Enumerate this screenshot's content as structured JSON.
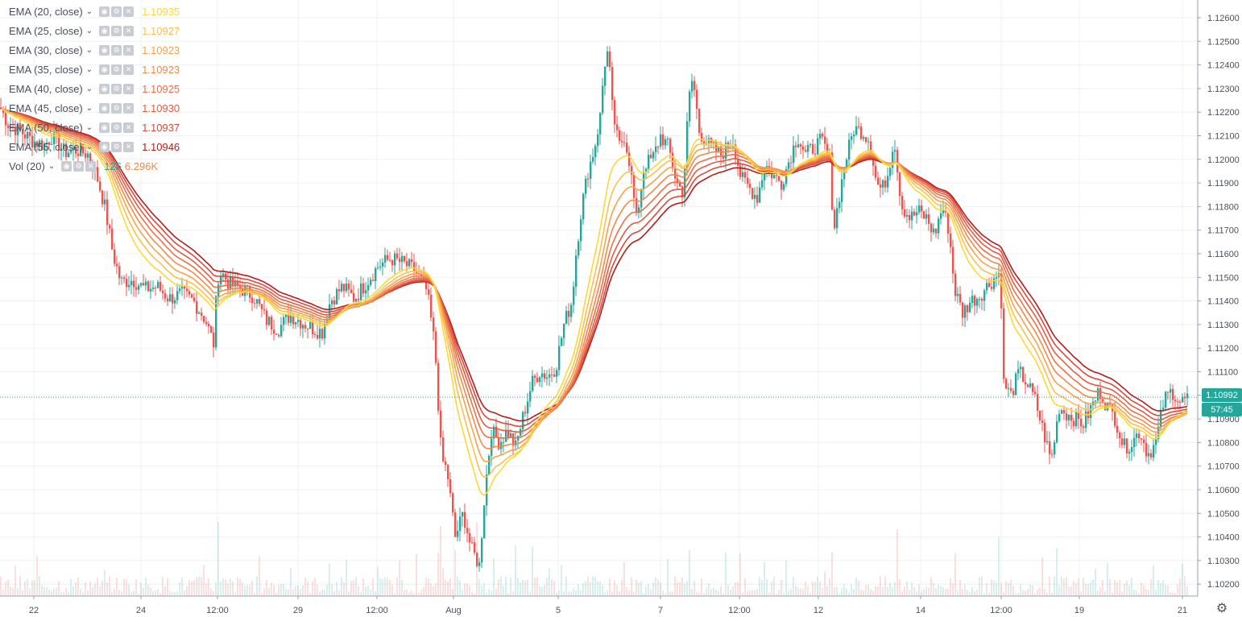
{
  "legend": [
    {
      "label": "EMA (20, close)",
      "value": "1.10935",
      "color": "#fdd835"
    },
    {
      "label": "EMA (25, close)",
      "value": "1.10927",
      "color": "#fbc04d"
    },
    {
      "label": "EMA (30, close)",
      "value": "1.10923",
      "color": "#f8a24a"
    },
    {
      "label": "EMA (35, close)",
      "value": "1.10923",
      "color": "#f28a4a"
    },
    {
      "label": "EMA (40, close)",
      "value": "1.10925",
      "color": "#ed7047"
    },
    {
      "label": "EMA (45, close)",
      "value": "1.10930",
      "color": "#e35c44"
    },
    {
      "label": "EMA (50, close)",
      "value": "1.10937",
      "color": "#d94a3c"
    },
    {
      "label": "EMA (55, close)",
      "value": "1.10946",
      "color": "#b71c1c"
    }
  ],
  "volume_legend": {
    "label": "Vol (20)",
    "value1": "126",
    "value2": "6.296K"
  },
  "last_price": "1.10992",
  "countdown": "57:45",
  "colors": {
    "up": "#26a69a",
    "down": "#ef5350",
    "price_tag": "#26a69a"
  },
  "chart_data": {
    "type": "candlestick",
    "y_axis_ticks": [
      "1.12600",
      "1.12500",
      "1.12400",
      "1.12300",
      "1.12200",
      "1.12100",
      "1.12000",
      "1.11900",
      "1.11800",
      "1.11700",
      "1.11600",
      "1.11500",
      "1.11400",
      "1.11300",
      "1.11200",
      "1.11100",
      "1.11000",
      "1.10900",
      "1.10800",
      "1.10700",
      "1.10600",
      "1.10500",
      "1.10400",
      "1.10300",
      "1.10200"
    ],
    "x_axis_ticks": [
      "22",
      "24",
      "12:00",
      "29",
      "12:00",
      "Aug",
      "5",
      "7",
      "12:00",
      "12",
      "14",
      "12:00",
      "19",
      "21"
    ],
    "ylim": [
      1.1014,
      1.1264
    ],
    "close_path": [
      [
        0,
        1.1222
      ],
      [
        10,
        1.1215
      ],
      [
        25,
        1.1212
      ],
      [
        40,
        1.1208
      ],
      [
        55,
        1.1206
      ],
      [
        65,
        1.121
      ],
      [
        80,
        1.1203
      ],
      [
        95,
        1.1204
      ],
      [
        110,
        1.1202
      ],
      [
        120,
        1.1193
      ],
      [
        130,
        1.118
      ],
      [
        140,
        1.116
      ],
      [
        150,
        1.1148
      ],
      [
        165,
        1.1149
      ],
      [
        180,
        1.1145
      ],
      [
        195,
        1.1146
      ],
      [
        210,
        1.1141
      ],
      [
        225,
        1.1143
      ],
      [
        240,
        1.114
      ],
      [
        255,
        1.1132
      ],
      [
        265,
        1.1122
      ],
      [
        270,
        1.115
      ],
      [
        275,
        1.1152
      ],
      [
        285,
        1.1147
      ],
      [
        300,
        1.1145
      ],
      [
        315,
        1.1142
      ],
      [
        330,
        1.1132
      ],
      [
        345,
        1.1128
      ],
      [
        360,
        1.1134
      ],
      [
        375,
        1.1131
      ],
      [
        390,
        1.1128
      ],
      [
        400,
        1.1127
      ],
      [
        410,
        1.114
      ],
      [
        425,
        1.1146
      ],
      [
        440,
        1.1141
      ],
      [
        455,
        1.1148
      ],
      [
        470,
        1.1155
      ],
      [
        485,
        1.1158
      ],
      [
        500,
        1.1156
      ],
      [
        515,
        1.1153
      ],
      [
        530,
        1.1144
      ],
      [
        540,
        1.112
      ],
      [
        548,
        1.1073
      ],
      [
        555,
        1.1068
      ],
      [
        565,
        1.104
      ],
      [
        575,
        1.105
      ],
      [
        585,
        1.1035
      ],
      [
        595,
        1.1028
      ],
      [
        602,
        1.106
      ],
      [
        610,
        1.1085
      ],
      [
        620,
        1.108
      ],
      [
        630,
        1.1085
      ],
      [
        640,
        1.1078
      ],
      [
        650,
        1.1092
      ],
      [
        660,
        1.1105
      ],
      [
        670,
        1.111
      ],
      [
        680,
        1.1108
      ],
      [
        690,
        1.1112
      ],
      [
        700,
        1.113
      ],
      [
        710,
        1.114
      ],
      [
        715,
        1.116
      ],
      [
        722,
        1.118
      ],
      [
        730,
        1.1195
      ],
      [
        738,
        1.1205
      ],
      [
        745,
        1.1218
      ],
      [
        750,
        1.124
      ],
      [
        755,
        1.1246
      ],
      [
        760,
        1.1222
      ],
      [
        768,
        1.1205
      ],
      [
        775,
        1.121
      ],
      [
        782,
        1.1198
      ],
      [
        790,
        1.1174
      ],
      [
        800,
        1.1198
      ],
      [
        810,
        1.12
      ],
      [
        820,
        1.121
      ],
      [
        830,
        1.1205
      ],
      [
        840,
        1.119
      ],
      [
        848,
        1.1186
      ],
      [
        855,
        1.1225
      ],
      [
        860,
        1.1235
      ],
      [
        868,
        1.1212
      ],
      [
        880,
        1.1206
      ],
      [
        895,
        1.1202
      ],
      [
        910,
        1.1208
      ],
      [
        920,
        1.1192
      ],
      [
        930,
        1.1188
      ],
      [
        940,
        1.1184
      ],
      [
        950,
        1.1198
      ],
      [
        960,
        1.1193
      ],
      [
        970,
        1.119
      ],
      [
        980,
        1.12
      ],
      [
        990,
        1.121
      ],
      [
        1000,
        1.1202
      ],
      [
        1010,
        1.1205
      ],
      [
        1020,
        1.1208
      ],
      [
        1030,
        1.12
      ],
      [
        1035,
        1.117
      ],
      [
        1042,
        1.1185
      ],
      [
        1050,
        1.12
      ],
      [
        1060,
        1.1213
      ],
      [
        1070,
        1.1212
      ],
      [
        1080,
        1.1208
      ],
      [
        1088,
        1.119
      ],
      [
        1095,
        1.1187
      ],
      [
        1103,
        1.1195
      ],
      [
        1110,
        1.121
      ],
      [
        1115,
        1.1192
      ],
      [
        1120,
        1.118
      ],
      [
        1130,
        1.1175
      ],
      [
        1140,
        1.1178
      ],
      [
        1150,
        1.1175
      ],
      [
        1160,
        1.1168
      ],
      [
        1170,
        1.118
      ],
      [
        1178,
        1.117
      ],
      [
        1185,
        1.1145
      ],
      [
        1195,
        1.1135
      ],
      [
        1205,
        1.114
      ],
      [
        1215,
        1.1142
      ],
      [
        1225,
        1.1146
      ],
      [
        1235,
        1.115
      ],
      [
        1242,
        1.1152
      ],
      [
        1246,
        1.1105
      ],
      [
        1255,
        1.11
      ],
      [
        1265,
        1.111
      ],
      [
        1275,
        1.1105
      ],
      [
        1285,
        1.1098
      ],
      [
        1295,
        1.1085
      ],
      [
        1305,
        1.1072
      ],
      [
        1315,
        1.1095
      ],
      [
        1325,
        1.1092
      ],
      [
        1335,
        1.109
      ],
      [
        1345,
        1.1088
      ],
      [
        1355,
        1.1095
      ],
      [
        1365,
        1.1102
      ],
      [
        1375,
        1.1095
      ],
      [
        1385,
        1.109
      ],
      [
        1395,
        1.1078
      ],
      [
        1405,
        1.108
      ],
      [
        1415,
        1.1085
      ],
      [
        1425,
        1.1075
      ],
      [
        1435,
        1.108
      ],
      [
        1445,
        1.1098
      ],
      [
        1455,
        1.1102
      ],
      [
        1465,
        1.1097
      ],
      [
        1475,
        1.1099
      ]
    ],
    "ema_periods": [
      20,
      25,
      30,
      35,
      40,
      45,
      50,
      55
    ],
    "volume_spikes": [
      [
        270,
        0.92
      ],
      [
        548,
        0.87
      ],
      [
        565,
        0.57
      ],
      [
        592,
        0.92
      ],
      [
        640,
        0.63
      ],
      [
        660,
        0.61
      ],
      [
        855,
        0.57
      ],
      [
        920,
        0.53
      ],
      [
        1115,
        0.83
      ],
      [
        1185,
        0.53
      ],
      [
        1240,
        0.73
      ],
      [
        1312,
        0.59
      ]
    ]
  }
}
